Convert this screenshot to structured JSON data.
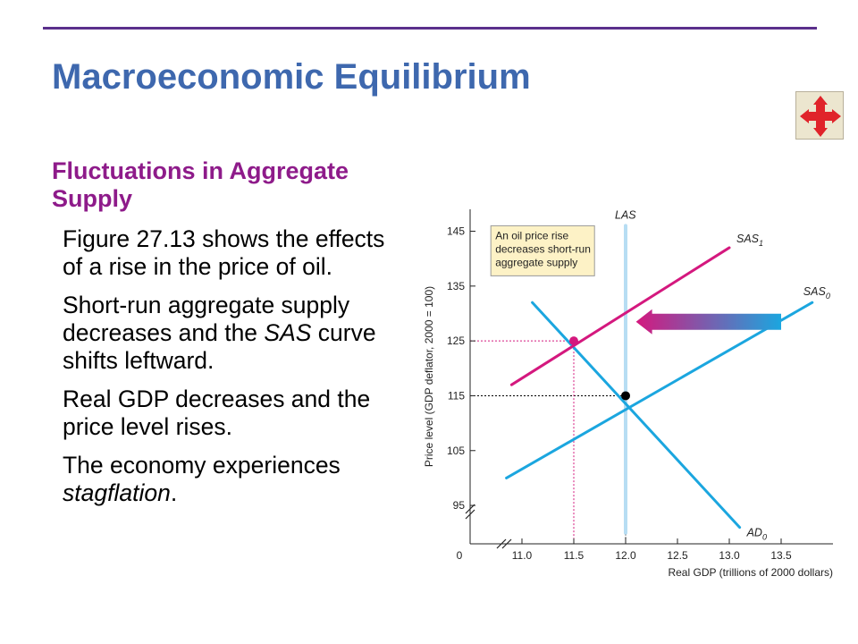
{
  "slide": {
    "title": "Macroeconomic Equilibrium",
    "subtitle": "Fluctuations in Aggregate Supply",
    "bullets": {
      "b1": "Figure 27.13 shows the effects of a rise in the price of oil.",
      "b2_pre": "Short-run aggregate supply decreases and the ",
      "b2_em": "SAS",
      "b2_post": " curve shifts leftward.",
      "b3": "Real GDP decreases and the price level rises.",
      "b4_pre": "The economy experiences ",
      "b4_em": "stagflation",
      "b4_post": "."
    },
    "nav_icon": "move-arrows-icon"
  },
  "chart_data": {
    "type": "line",
    "xlabel": "Real GDP (trillions of 2000 dollars)",
    "ylabel": "Price level (GDP deflator, 2000 = 100)",
    "origin_label": "0",
    "x_ticks": [
      11.0,
      11.5,
      12.0,
      12.5,
      13.0,
      13.5
    ],
    "x_tick_labels": [
      "11.0",
      "11.5",
      "12.0",
      "12.5",
      "13.0",
      "13.5"
    ],
    "y_ticks": [
      95,
      105,
      115,
      125,
      135,
      145
    ],
    "y_tick_labels": [
      "95",
      "105",
      "115",
      "125",
      "135",
      "145"
    ],
    "xlim": [
      10.5,
      14.0
    ],
    "ylim": [
      88,
      149
    ],
    "axis_breaks": true,
    "highlight_x_tick": "11.5",
    "series": [
      {
        "name": "AD",
        "sub": "0",
        "color": "#1ba6df",
        "points": [
          [
            11.1,
            132
          ],
          [
            13.1,
            91
          ]
        ]
      },
      {
        "name": "SAS",
        "sub": "0",
        "color": "#1ba6df",
        "points": [
          [
            10.85,
            100
          ],
          [
            13.8,
            132
          ]
        ]
      },
      {
        "name": "SAS",
        "sub": "1",
        "color": "#d4187e",
        "points": [
          [
            10.9,
            117
          ],
          [
            13.0,
            142
          ]
        ]
      },
      {
        "name": "LAS",
        "sub": "",
        "color": "#b7ddf3",
        "points": [
          [
            12.0,
            90
          ],
          [
            12.0,
            146
          ]
        ]
      }
    ],
    "equilibria": [
      {
        "x": 12.0,
        "y": 115,
        "color": "#000000"
      },
      {
        "x": 11.5,
        "y": 125,
        "color": "#d4187e"
      }
    ],
    "annotation": {
      "lines": [
        "An oil price rise",
        "decreases short-run",
        "aggregate supply"
      ]
    },
    "shift_arrow": {
      "from_x": 13.5,
      "to_x": 12.1,
      "y": 128.5,
      "colors": [
        "#d4187e",
        "#1ba6df"
      ]
    }
  }
}
